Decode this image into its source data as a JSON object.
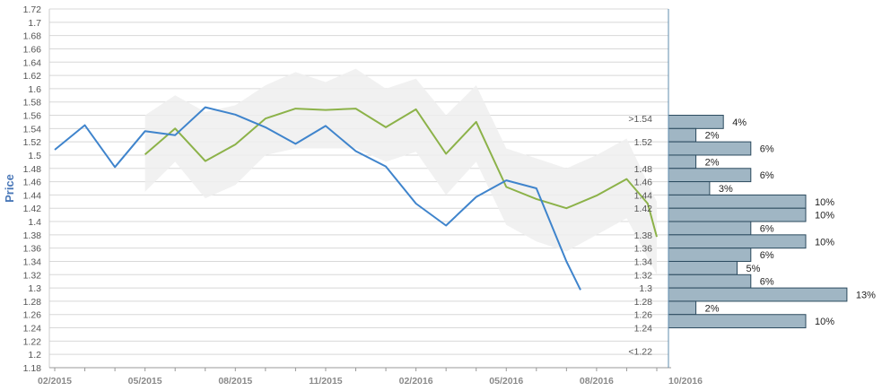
{
  "chart_data": {
    "type": "line",
    "ylabel": "Price",
    "ylim": [
      1.18,
      1.72
    ],
    "y_ticks": [
      "1.18",
      "1.2",
      "1.22",
      "1.24",
      "1.26",
      "1.28",
      "1.3",
      "1.32",
      "1.34",
      "1.36",
      "1.38",
      "1.4",
      "1.42",
      "1.44",
      "1.46",
      "1.48",
      "1.5",
      "1.52",
      "1.54",
      "1.56",
      "1.58",
      "1.6",
      "1.62",
      "1.64",
      "1.66",
      "1.68",
      "1.7",
      "1.72"
    ],
    "x_ticks": [
      "02/2015",
      "05/2015",
      "08/2015",
      "11/2015",
      "02/2016",
      "05/2016",
      "08/2016",
      "10/2016"
    ],
    "grid": true,
    "colors": {
      "actual": "#3f84cc",
      "forecast": "#8cb249",
      "band": "#eeeeee",
      "histogram": "#a0b6c4",
      "histogram_border": "#2b4a5e",
      "axis": "#5f8cae"
    },
    "series": [
      {
        "role": "actual",
        "x": [
          "2015-02",
          "2015-03",
          "2015-04",
          "2015-05",
          "2015-06",
          "2015-07",
          "2015-08",
          "2015-09",
          "2015-10",
          "2015-11",
          "2015-12",
          "2016-01",
          "2016-02",
          "2016-03",
          "2016-04",
          "2016-05",
          "2016-06",
          "2016-07",
          "2016-07-15"
        ],
        "y": [
          1.508,
          1.545,
          1.482,
          1.536,
          1.53,
          1.572,
          1.561,
          1.542,
          1.517,
          1.544,
          1.506,
          1.483,
          1.427,
          1.394,
          1.437,
          1.462,
          1.45,
          1.34,
          1.297
        ]
      },
      {
        "role": "forecast",
        "x": [
          "2015-05",
          "2015-06",
          "2015-07",
          "2015-08",
          "2015-09",
          "2015-10",
          "2015-11",
          "2015-12",
          "2016-01",
          "2016-02",
          "2016-03",
          "2016-04",
          "2016-05",
          "2016-06",
          "2016-07",
          "2016-08",
          "2016-09",
          "2016-09-22",
          "2016-10"
        ],
        "y": [
          1.501,
          1.54,
          1.491,
          1.516,
          1.555,
          1.57,
          1.568,
          1.57,
          1.542,
          1.569,
          1.502,
          1.55,
          1.452,
          1.434,
          1.42,
          1.439,
          1.464,
          1.427,
          1.377
        ]
      },
      {
        "role": "band",
        "x": [
          "2015-05",
          "2015-06",
          "2015-07",
          "2015-08",
          "2015-09",
          "2015-10",
          "2015-11",
          "2015-12",
          "2016-01",
          "2016-02",
          "2016-03",
          "2016-04",
          "2016-05",
          "2016-06",
          "2016-07",
          "2016-08",
          "2016-09",
          "2016-10"
        ],
        "upper": [
          1.56,
          1.59,
          1.565,
          1.575,
          1.605,
          1.625,
          1.61,
          1.63,
          1.6,
          1.615,
          1.56,
          1.605,
          1.51,
          1.495,
          1.48,
          1.5,
          1.525,
          1.43
        ],
        "lower": [
          1.445,
          1.49,
          1.435,
          1.455,
          1.5,
          1.51,
          1.51,
          1.51,
          1.49,
          1.505,
          1.44,
          1.49,
          1.395,
          1.37,
          1.355,
          1.38,
          1.405,
          1.32
        ]
      }
    ],
    "histogram": {
      "buckets": [
        ">1.54",
        "1.52",
        "1.48",
        "1.46",
        "1.44",
        "1.42",
        "1.38",
        "1.36",
        "1.34",
        "1.32",
        "1.3",
        "1.28",
        "1.26",
        "1.24",
        "<1.22"
      ],
      "bars": [
        {
          "center": 1.55,
          "label": "4%",
          "value": 4
        },
        {
          "center": 1.53,
          "label": "2%",
          "value": 2
        },
        {
          "center": 1.51,
          "label": "6%",
          "value": 6
        },
        {
          "center": 1.49,
          "label": "2%",
          "value": 2
        },
        {
          "center": 1.47,
          "label": "6%",
          "value": 6
        },
        {
          "center": 1.45,
          "label": "3%",
          "value": 3
        },
        {
          "center": 1.43,
          "label": "10%",
          "value": 10
        },
        {
          "center": 1.41,
          "label": "10%",
          "value": 10
        },
        {
          "center": 1.39,
          "label": "6%",
          "value": 6
        },
        {
          "center": 1.37,
          "label": "10%",
          "value": 10
        },
        {
          "center": 1.35,
          "label": "6%",
          "value": 6
        },
        {
          "center": 1.33,
          "label": "5%",
          "value": 5
        },
        {
          "center": 1.31,
          "label": "6%",
          "value": 6
        },
        {
          "center": 1.29,
          "label": "13%",
          "value": 13
        },
        {
          "center": 1.27,
          "label": "2%",
          "value": 2
        },
        {
          "center": 1.25,
          "label": "10%",
          "value": 10
        }
      ]
    }
  }
}
